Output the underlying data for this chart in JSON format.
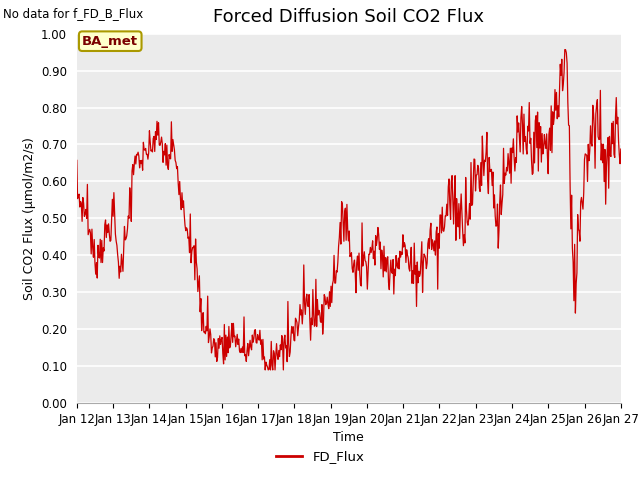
{
  "title": "Forced Diffusion Soil CO2 Flux",
  "xlabel": "Time",
  "ylabel": "Soil CO2 Flux (μmol/m2/s)",
  "no_data_text": "No data for f_FD_B_Flux",
  "legend_label": "FD_Flux",
  "ba_met_label": "BA_met",
  "line_color": "#cc0000",
  "ba_met_bg": "#ffffcc",
  "ba_met_border": "#aa9900",
  "background_color": "#ebebeb",
  "ylim": [
    0.0,
    1.0
  ],
  "yticks": [
    0.0,
    0.1,
    0.2,
    0.3,
    0.4,
    0.5,
    0.6,
    0.7,
    0.8,
    0.9,
    1.0
  ],
  "xtick_days": [
    12,
    13,
    14,
    15,
    16,
    17,
    18,
    19,
    20,
    21,
    22,
    23,
    24,
    25,
    26,
    27
  ],
  "title_fontsize": 13,
  "axis_label_fontsize": 9,
  "tick_fontsize": 8.5
}
